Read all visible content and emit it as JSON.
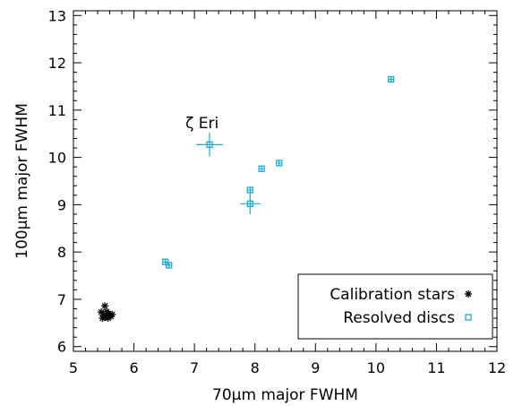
{
  "chart_data": {
    "type": "scatter",
    "xlabel": "70μm major FWHM",
    "ylabel": "100μm major FWHM",
    "xlim": [
      5,
      12
    ],
    "ylim": [
      5.9,
      13.1
    ],
    "x_ticks": [
      5,
      6,
      7,
      8,
      9,
      10,
      11,
      12
    ],
    "y_ticks": [
      6,
      7,
      8,
      9,
      10,
      11,
      12,
      13
    ],
    "legend_position": "bottom-right",
    "annotations": [
      {
        "text": "ζ Eri",
        "x": 7.0,
        "y": 10.62
      }
    ],
    "series": [
      {
        "name": "Calibration stars",
        "marker": "asterisk",
        "color": "#000000",
        "points": [
          {
            "x": 5.46,
            "y": 6.73
          },
          {
            "x": 5.5,
            "y": 6.66
          },
          {
            "x": 5.52,
            "y": 6.86
          },
          {
            "x": 5.53,
            "y": 6.62
          },
          {
            "x": 5.55,
            "y": 6.74
          },
          {
            "x": 5.57,
            "y": 6.6
          },
          {
            "x": 5.58,
            "y": 6.7
          },
          {
            "x": 5.6,
            "y": 6.66
          },
          {
            "x": 5.62,
            "y": 6.64
          },
          {
            "x": 5.48,
            "y": 6.6
          },
          {
            "x": 5.64,
            "y": 6.68
          }
        ]
      },
      {
        "name": "Resolved discs",
        "marker": "square",
        "color": "#1aa9df",
        "points": [
          {
            "x": 6.52,
            "y": 7.79,
            "xerr": 0.03,
            "yerr": 0.06
          },
          {
            "x": 6.58,
            "y": 7.72,
            "xerr": 0.03,
            "yerr": 0.05
          },
          {
            "x": 7.25,
            "y": 10.27,
            "xerr": 0.22,
            "yerr": 0.25
          },
          {
            "x": 7.92,
            "y": 9.31,
            "xerr": 0.03,
            "yerr": 0.07
          },
          {
            "x": 7.92,
            "y": 9.02,
            "xerr": 0.17,
            "yerr": 0.22
          },
          {
            "x": 8.11,
            "y": 9.76,
            "xerr": 0.03,
            "yerr": 0.05
          },
          {
            "x": 8.4,
            "y": 9.88,
            "xerr": 0.03,
            "yerr": 0.05
          },
          {
            "x": 10.25,
            "y": 11.65,
            "xerr": 0.04,
            "yerr": 0.05
          }
        ]
      }
    ]
  }
}
